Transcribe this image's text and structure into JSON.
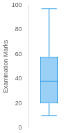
{
  "chart_data": {
    "type": "boxplot",
    "ylabel": "Examination Marks",
    "boxes": [
      {
        "whisker_low": 10,
        "q1": 20,
        "median": 38,
        "q3": 58,
        "whisker_high": 97
      }
    ],
    "ylim": [
      0,
      100
    ],
    "yticks": [
      0,
      20,
      40,
      60,
      80,
      100
    ],
    "grid": false,
    "tick_labels": "y"
  }
}
